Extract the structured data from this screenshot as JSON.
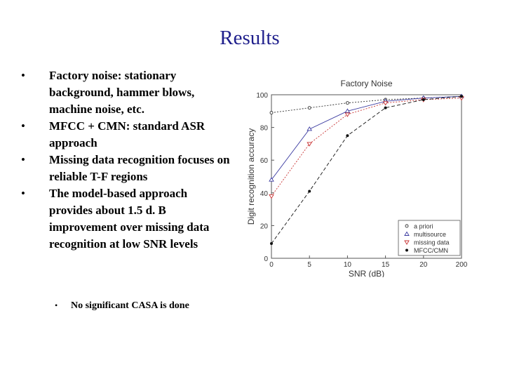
{
  "slide": {
    "title": "Results",
    "bullets": [
      "Factory noise: stationary background, hammer blows, machine noise, etc.",
      "MFCC + CMN: standard ASR approach",
      "Missing data recognition focuses on reliable T-F regions",
      "The model-based approach provides about 1.5 d. B improvement over missing data recognition at low SNR levels"
    ],
    "sub_bullet": "No significant CASA is done"
  },
  "chart_data": {
    "type": "line",
    "title": "Factory Noise",
    "xlabel": "SNR (dB)",
    "ylabel": "Digit recognition accuracy",
    "categories": [
      "0",
      "5",
      "10",
      "15",
      "20",
      "200"
    ],
    "y_ticks": [
      "0",
      "20",
      "40",
      "60",
      "80",
      "100"
    ],
    "ylim": [
      0,
      100
    ],
    "grid": false,
    "legend_position": "bottom-right",
    "series": [
      {
        "name": "a priori",
        "marker": "circle",
        "color": "#333333",
        "dash": "2,2",
        "values": [
          89,
          92,
          95,
          97,
          98,
          99
        ]
      },
      {
        "name": "multisource",
        "marker": "triangle-up",
        "color": "#3a3aa0",
        "dash": "",
        "values": [
          48,
          79,
          90,
          96,
          98,
          99
        ]
      },
      {
        "name": "missing data",
        "marker": "triangle-down",
        "color": "#c83232",
        "dash": "2,2",
        "values": [
          38,
          70,
          88,
          95,
          97,
          98
        ]
      },
      {
        "name": "MFCC/CMN",
        "marker": "star",
        "color": "#111111",
        "dash": "5,3",
        "values": [
          9,
          41,
          75,
          92,
          97,
          99
        ]
      }
    ]
  }
}
